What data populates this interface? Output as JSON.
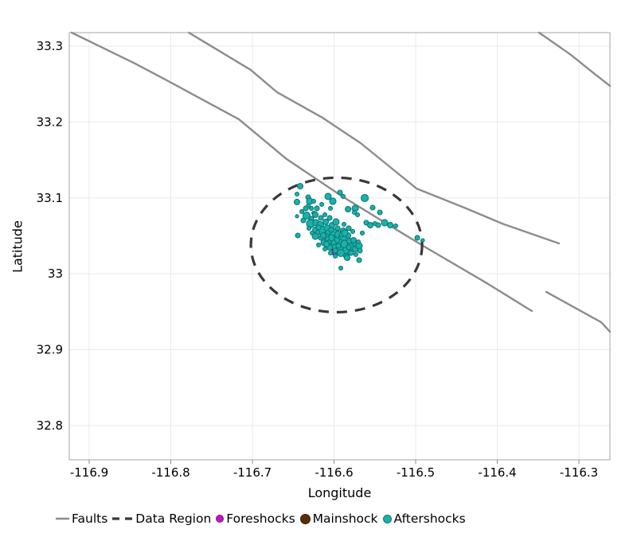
{
  "chart_data": {
    "type": "scatter",
    "title": "",
    "xlabel": "Longitude",
    "ylabel": "Latitude",
    "xlim": [
      -116.9244,
      -116.262
    ],
    "ylim": [
      32.7549,
      33.3178
    ],
    "grid": true,
    "legend_position": "bottom",
    "xticks": {
      "values": [
        -116.9,
        -116.8,
        -116.7,
        -116.6,
        -116.5,
        -116.4,
        -116.3
      ],
      "labels": [
        "-116.9",
        "-116.8",
        "-116.7",
        "-116.6",
        "-116.5",
        "-116.4",
        "-116.3"
      ]
    },
    "yticks": {
      "values": [
        33.3,
        33.2,
        33.1,
        33.0,
        32.9,
        32.8
      ],
      "labels": [
        "33.3",
        "33.2",
        "33.1",
        "33",
        "32.9",
        "32.8"
      ]
    },
    "point_format": "[longitude, latitude, marker_radius_px]",
    "colors": {
      "grid": "#EAEAEA",
      "border": "#A6A6A6",
      "tick": "#8C8C8C",
      "text": "#000000"
    },
    "series": {
      "faults": {
        "label": "Faults",
        "color": "#8C8C8C",
        "width": 2.4,
        "lines": [
          [
            [
              -116.9215,
              33.3178
            ],
            [
              -116.8434,
              33.2769
            ],
            [
              -116.7995,
              33.2518
            ],
            [
              -116.7166,
              33.2036
            ],
            [
              -116.658,
              33.1511
            ],
            [
              -116.5898,
              33.1019
            ],
            [
              -116.539,
              33.0683
            ],
            [
              -116.4893,
              33.0358
            ],
            [
              -116.4112,
              32.9866
            ],
            [
              -116.3576,
              32.9509
            ]
          ],
          [
            [
              -116.34,
              32.9761
            ],
            [
              -116.2727,
              32.9362
            ],
            [
              -116.262,
              32.9237
            ]
          ],
          [
            [
              -116.778,
              33.3178
            ],
            [
              -116.702,
              33.2686
            ],
            [
              -116.6698,
              33.2392
            ],
            [
              -116.6141,
              33.2057
            ],
            [
              -116.5673,
              33.1721
            ],
            [
              -116.499,
              33.1124
            ],
            [
              -116.4405,
              33.0872
            ],
            [
              -116.3917,
              33.0652
            ],
            [
              -116.3244,
              33.04
            ]
          ],
          [
            [
              -116.3488,
              33.3178
            ],
            [
              -116.3098,
              33.2885
            ],
            [
              -116.2844,
              33.2665
            ],
            [
              -116.262,
              33.2476
            ]
          ]
        ]
      },
      "data_region": {
        "label": "Data Region",
        "color": "#383838",
        "style": "dashed",
        "stroke_width": 3.2,
        "center": [
          -116.597,
          33.038
        ],
        "radius_lon": 0.1049,
        "radius_lat": 0.0886
      },
      "foreshocks": {
        "label": "Foreshocks",
        "fill": "#C016C0",
        "stroke": "#8A0D8A",
        "points": [
          [
            -116.599,
            33.0274,
            3.5
          ]
        ]
      },
      "mainshock": {
        "label": "Mainshock",
        "fill": "#5A2D0B",
        "stroke": "#3A1D06",
        "points": [
          [
            -116.5985,
            33.0369,
            7
          ]
        ]
      },
      "aftershocks": {
        "label": "Aftershocks",
        "fill": "#1CB0AB",
        "stroke": "#0A7A74",
        "points": [
          [
            -116.6415,
            33.1155,
            3.5
          ],
          [
            -116.6454,
            33.105,
            2.5
          ],
          [
            -116.6454,
            33.0946,
            3.5
          ],
          [
            -116.6317,
            33.1008,
            3.0
          ],
          [
            -116.6298,
            33.0956,
            4.0
          ],
          [
            -116.6249,
            33.0956,
            2.5
          ],
          [
            -116.6317,
            33.0893,
            2.5
          ],
          [
            -116.6151,
            33.0914,
            2.5
          ],
          [
            -116.6073,
            33.1019,
            4.0
          ],
          [
            -116.6015,
            33.0956,
            4.0
          ],
          [
            -116.5927,
            33.1071,
            3.0
          ],
          [
            -116.5888,
            33.1019,
            2.5
          ],
          [
            -116.6044,
            33.0862,
            2.5
          ],
          [
            -116.5829,
            33.0851,
            3.5
          ],
          [
            -116.5741,
            33.0862,
            4.0
          ],
          [
            -116.5712,
            33.0778,
            2.5
          ],
          [
            -116.5624,
            33.0998,
            4.5
          ],
          [
            -116.5527,
            33.0872,
            3.0
          ],
          [
            -116.5439,
            33.0809,
            3.0
          ],
          [
            -116.6454,
            33.0757,
            2.0
          ],
          [
            -116.6444,
            33.0505,
            3.0
          ],
          [
            -116.6376,
            33.0704,
            3.0
          ],
          [
            -116.6395,
            33.082,
            2.5
          ],
          [
            -116.6346,
            33.0862,
            3.0
          ],
          [
            -116.6278,
            33.0862,
            2.5
          ],
          [
            -116.621,
            33.0862,
            3.0
          ],
          [
            -116.6249,
            33.0799,
            2.5
          ],
          [
            -116.6337,
            33.0767,
            4.5
          ],
          [
            -116.6278,
            33.0725,
            3.0
          ],
          [
            -116.6229,
            33.0778,
            3.5
          ],
          [
            -116.6288,
            33.0662,
            5.0
          ],
          [
            -116.622,
            33.0673,
            4.0
          ],
          [
            -116.6161,
            33.0736,
            3.0
          ],
          [
            -116.6171,
            33.0641,
            4.5
          ],
          [
            -116.6112,
            33.0778,
            2.5
          ],
          [
            -116.6102,
            33.0684,
            3.5
          ],
          [
            -116.6054,
            33.0736,
            3.0
          ],
          [
            -116.6229,
            33.0579,
            3.5
          ],
          [
            -116.6307,
            33.06,
            2.5
          ],
          [
            -116.6268,
            33.0537,
            2.5
          ],
          [
            -116.6151,
            33.0568,
            5.5
          ],
          [
            -116.6083,
            33.06,
            4.0
          ],
          [
            -116.6093,
            33.0505,
            4.5
          ],
          [
            -116.6024,
            33.0641,
            3.5
          ],
          [
            -116.6015,
            33.0547,
            5.0
          ],
          [
            -116.5956,
            33.06,
            3.0
          ],
          [
            -116.5946,
            33.0516,
            4.5
          ],
          [
            -116.5888,
            33.0568,
            3.5
          ],
          [
            -116.6161,
            33.0474,
            3.0
          ],
          [
            -116.6229,
            33.0495,
            4.0
          ],
          [
            -116.5878,
            33.0652,
            2.5
          ],
          [
            -116.582,
            33.06,
            3.0
          ],
          [
            -116.5898,
            33.0463,
            5.0
          ],
          [
            -116.5829,
            33.0505,
            3.5
          ],
          [
            -116.5771,
            33.0558,
            2.5
          ],
          [
            -116.5976,
            33.0684,
            4.0
          ],
          [
            -116.6122,
            33.0411,
            4.0
          ],
          [
            -116.6063,
            33.0432,
            5.0
          ],
          [
            -116.6005,
            33.0463,
            3.5
          ],
          [
            -116.5995,
            33.038,
            5.5
          ],
          [
            -116.5937,
            33.0421,
            4.0
          ],
          [
            -116.5927,
            33.0338,
            4.5
          ],
          [
            -116.5868,
            33.039,
            5.0
          ],
          [
            -116.581,
            33.0432,
            3.5
          ],
          [
            -116.58,
            33.0358,
            4.5
          ],
          [
            -116.5751,
            33.04,
            3.0
          ],
          [
            -116.5741,
            33.0327,
            3.5
          ],
          [
            -116.5693,
            33.0369,
            4.0
          ],
          [
            -116.6054,
            33.0348,
            3.5
          ],
          [
            -116.6112,
            33.0327,
            2.5
          ],
          [
            -116.5859,
            33.0306,
            4.0
          ],
          [
            -116.579,
            33.0274,
            3.0
          ],
          [
            -116.5917,
            33.0274,
            4.5
          ],
          [
            -116.5985,
            33.0306,
            3.0
          ],
          [
            -116.5732,
            33.0254,
            2.5
          ],
          [
            -116.5683,
            33.0306,
            3.0
          ],
          [
            -116.5849,
            33.0233,
            3.5
          ],
          [
            -116.6044,
            33.0274,
            2.5
          ],
          [
            -116.5654,
            33.0537,
            2.5
          ],
          [
            -116.5605,
            33.0673,
            3.0
          ],
          [
            -116.5556,
            33.0641,
            3.5
          ],
          [
            -116.5498,
            33.0662,
            2.5
          ],
          [
            -116.5459,
            33.0641,
            3.0
          ],
          [
            -116.538,
            33.0673,
            4.0
          ],
          [
            -116.5312,
            33.0641,
            3.5
          ],
          [
            -116.5244,
            33.0631,
            2.5
          ],
          [
            -116.498,
            33.0474,
            3.0
          ],
          [
            -116.4912,
            33.0442,
            2.0
          ],
          [
            -116.5751,
            33.0809,
            2.5
          ],
          [
            -116.5839,
            33.0212,
            3.5
          ],
          [
            -116.5693,
            33.018,
            3.0
          ],
          [
            -116.5917,
            33.0075,
            2.5
          ],
          [
            -116.619,
            33.038,
            2.5
          ],
          [
            -116.6093,
            33.039,
            3.5
          ],
          [
            -116.619,
            33.061,
            3.0
          ],
          [
            -116.6132,
            33.0505,
            3.5
          ],
          [
            -116.6073,
            33.0547,
            3.0
          ],
          [
            -116.6034,
            33.0474,
            4.0
          ],
          [
            -116.5966,
            33.0442,
            3.5
          ],
          [
            -116.5907,
            33.0516,
            3.0
          ],
          [
            -116.5946,
            33.0369,
            3.0
          ],
          [
            -116.6005,
            33.0411,
            3.0
          ],
          [
            -116.6083,
            33.0463,
            2.5
          ],
          [
            -116.62,
            33.0547,
            2.5
          ],
          [
            -116.582,
            33.0348,
            3.0
          ],
          [
            -116.5761,
            33.0442,
            3.5
          ],
          [
            -116.5702,
            33.0421,
            2.5
          ],
          [
            -116.5868,
            33.0537,
            4.0
          ],
          [
            -116.6034,
            33.0579,
            3.0
          ],
          [
            -116.5985,
            33.0233,
            2.5
          ]
        ]
      }
    },
    "legend_order": [
      "faults",
      "data_region",
      "foreshocks",
      "mainshock",
      "aftershocks"
    ]
  }
}
